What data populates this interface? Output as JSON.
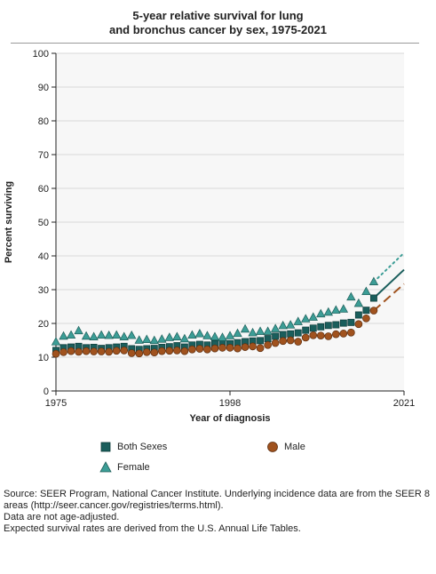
{
  "chart_data": {
    "type": "line",
    "title_lines": [
      "5-year relative survival for lung",
      "and bronchus cancer by sex, 1975-2021"
    ],
    "xlabel": "Year of diagnosis",
    "ylabel": "Percent surviving",
    "xlim": [
      1975,
      2021
    ],
    "ylim": [
      0,
      100
    ],
    "x_ticks": [
      "1975",
      "1998",
      "2021"
    ],
    "y_ticks": [
      "0",
      "10",
      "20",
      "30",
      "40",
      "50",
      "60",
      "70",
      "80",
      "90",
      "100"
    ],
    "grid": "horizontal",
    "legend_position": "bottom",
    "observed_years": [
      1975,
      1976,
      1977,
      1978,
      1979,
      1980,
      1981,
      1982,
      1983,
      1984,
      1985,
      1986,
      1987,
      1988,
      1989,
      1990,
      1991,
      1992,
      1993,
      1994,
      1995,
      1996,
      1997,
      1998,
      1999,
      2000,
      2001,
      2002,
      2003,
      2004,
      2005,
      2006,
      2007,
      2008,
      2009,
      2010,
      2011,
      2012,
      2013,
      2014,
      2015,
      2016,
      2017
    ],
    "series": [
      {
        "name": "Both Sexes",
        "color": "#1a5e5c",
        "marker": "square",
        "values": [
          12.0,
          12.8,
          13.0,
          13.2,
          12.8,
          12.9,
          12.6,
          12.8,
          13.0,
          13.2,
          12.5,
          12.3,
          12.5,
          12.6,
          12.9,
          13.1,
          13.4,
          13.0,
          13.6,
          13.8,
          13.6,
          14.0,
          14.2,
          14.0,
          14.3,
          14.6,
          14.8,
          14.9,
          15.5,
          16.2,
          16.7,
          16.9,
          17.2,
          18.0,
          18.6,
          19.0,
          19.4,
          19.6,
          20.1,
          20.3,
          22.5,
          23.9,
          27.5
        ],
        "projection": {
          "x": [
            2017,
            2021
          ],
          "values": [
            27.5,
            35.9
          ],
          "style": "solid"
        }
      },
      {
        "name": "Male",
        "color": "#a0521e",
        "marker": "circle",
        "values": [
          11.0,
          11.5,
          11.8,
          11.6,
          11.8,
          11.7,
          11.7,
          11.6,
          11.9,
          12.0,
          11.2,
          11.1,
          11.5,
          11.4,
          11.8,
          11.9,
          12.0,
          11.8,
          12.3,
          12.5,
          12.3,
          12.6,
          12.8,
          12.8,
          12.6,
          13.0,
          13.2,
          12.7,
          13.6,
          14.2,
          14.8,
          15.0,
          14.6,
          15.8,
          16.5,
          16.4,
          16.2,
          16.8,
          17.0,
          17.3,
          19.8,
          21.5,
          23.8
        ],
        "projection": {
          "x": [
            2017,
            2021
          ],
          "values": [
            23.8,
            31.7
          ],
          "style": "dashed"
        }
      },
      {
        "name": "Female",
        "color": "#3c9d96",
        "marker": "triangle",
        "values": [
          14.5,
          16.2,
          16.5,
          17.8,
          16.2,
          16.0,
          16.5,
          16.4,
          16.5,
          16.0,
          16.4,
          15.0,
          15.2,
          14.9,
          15.3,
          15.8,
          16.0,
          15.4,
          16.5,
          16.9,
          16.3,
          16.0,
          15.8,
          16.3,
          17.0,
          18.3,
          17.2,
          17.6,
          17.6,
          18.4,
          19.3,
          19.5,
          20.5,
          21.3,
          21.8,
          22.8,
          23.3,
          23.9,
          24.2,
          27.8,
          25.9,
          29.4,
          32.3
        ],
        "projection": {
          "x": [
            2017,
            2021
          ],
          "values": [
            32.3,
            40.9
          ],
          "style": "dotted"
        }
      }
    ]
  },
  "legend": {
    "both_sexes": "Both Sexes",
    "male": "Male",
    "female": "Female"
  },
  "notes": [
    "Source: SEER Program, National Cancer Institute. Underlying incidence data are from the SEER 8 areas (http://seer.cancer.gov/registries/terms.html).",
    "Data are not age-adjusted.",
    "Expected survival rates are derived from the U.S. Annual Life Tables."
  ],
  "colors": {
    "plot_bg": "#f7f7f7",
    "grid": "#d8d8d8",
    "axis": "#222222"
  }
}
